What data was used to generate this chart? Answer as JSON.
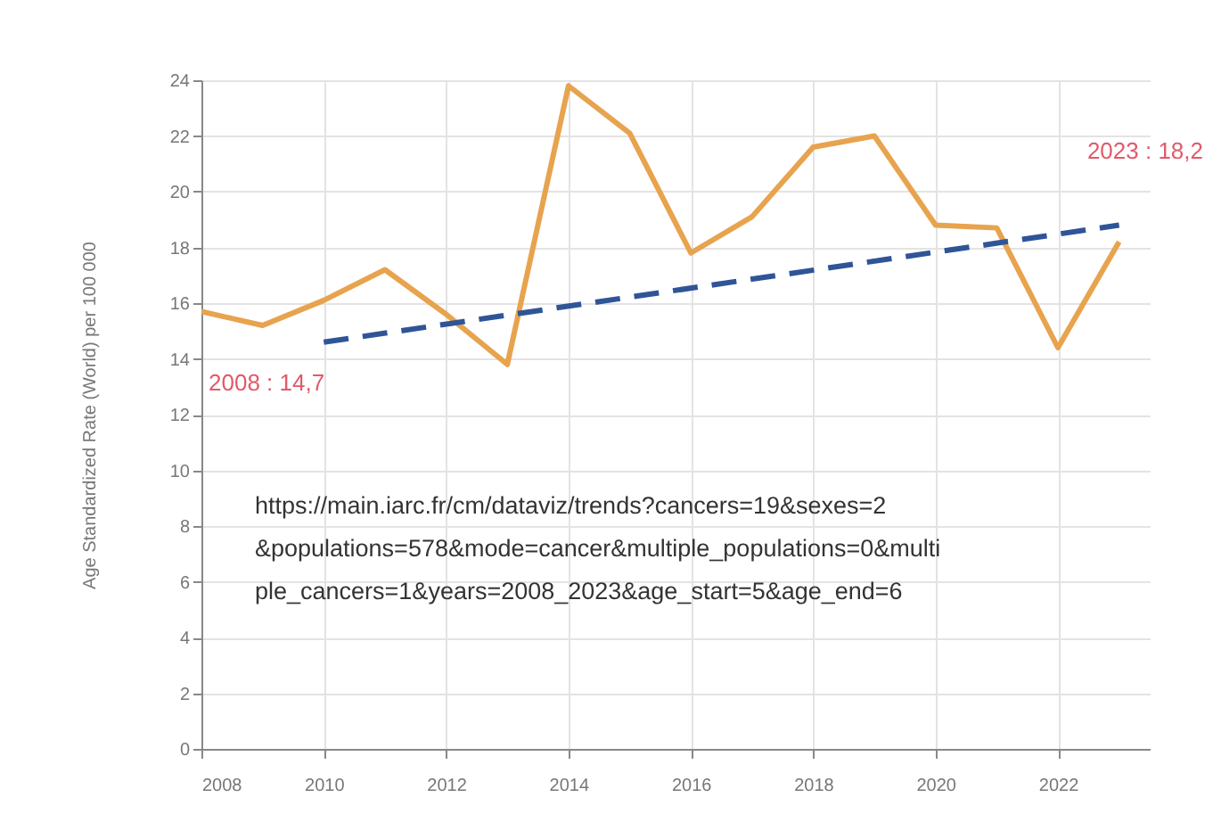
{
  "chart_data": {
    "type": "line",
    "ylabel": "Age Standardized Rate (World) per 100 000",
    "x": [
      2008,
      2009,
      2010,
      2011,
      2012,
      2013,
      2014,
      2015,
      2016,
      2017,
      2018,
      2019,
      2020,
      2021,
      2022,
      2023
    ],
    "series": [
      {
        "color": "#e8a34e",
        "values": [
          15.7,
          15.2,
          16.1,
          17.2,
          15.6,
          13.8,
          23.8,
          22.1,
          17.8,
          19.1,
          21.6,
          22.0,
          18.8,
          18.7,
          14.4,
          18.2
        ]
      },
      {
        "type": "line",
        "line_style": "dashed",
        "color": "#2f5597",
        "x": [
          2010,
          2023
        ],
        "values": [
          14.6,
          18.8
        ]
      }
    ],
    "xlim": [
      2008,
      2023.5
    ],
    "xticks": [
      2008,
      2010,
      2012,
      2014,
      2016,
      2018,
      2020,
      2022
    ],
    "ylim": [
      0,
      24
    ],
    "yticks": [
      0,
      2,
      4,
      6,
      8,
      10,
      12,
      14,
      16,
      18,
      20,
      22,
      24
    ],
    "grid": true,
    "line_style": "solid",
    "marker": "none",
    "annotations": [
      "2008 : 14,7",
      "2023 : 18,2",
      "https://main.iarc.fr/cm/dataviz/trends?cancers=19&sexes=2&populations=578&mode=cancer&multiple_populations=0&multiple_cancers=1&years=2008_2023&age_start=5&age_end=6"
    ]
  }
}
